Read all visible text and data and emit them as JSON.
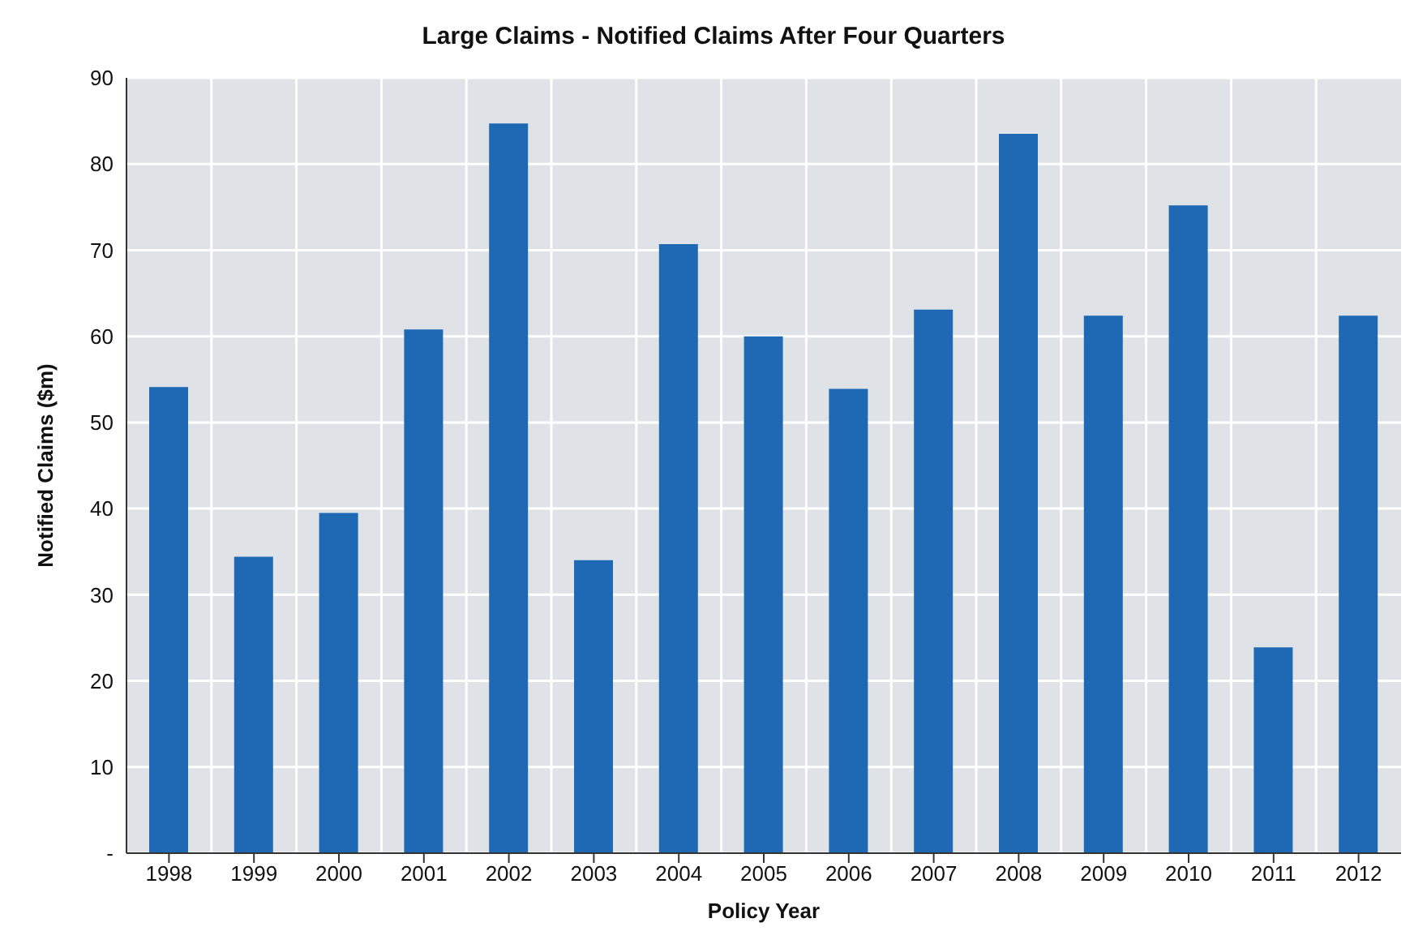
{
  "chart_data": {
    "type": "bar",
    "title": "Large Claims - Notified Claims After Four Quarters",
    "xlabel": "Policy Year",
    "ylabel": "Notified Claims ($m)",
    "categories": [
      "1998",
      "1999",
      "2000",
      "2001",
      "2002",
      "2003",
      "2004",
      "2005",
      "2006",
      "2007",
      "2008",
      "2009",
      "2010",
      "2011",
      "2012"
    ],
    "values": [
      54.1,
      34.4,
      39.5,
      60.8,
      84.7,
      34.0,
      70.7,
      60.0,
      53.9,
      63.1,
      83.5,
      62.4,
      75.2,
      23.9,
      62.4
    ],
    "color": "#1f68b3",
    "ylim": [
      0,
      90
    ],
    "yticks": [
      {
        "value": 0,
        "label": "-"
      },
      10,
      20,
      30,
      40,
      50,
      60,
      70,
      80,
      90
    ],
    "grid": true
  }
}
